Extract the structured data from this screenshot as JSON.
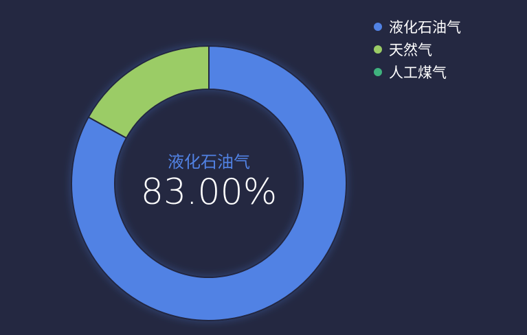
{
  "chart_data": {
    "type": "pie",
    "categories": [
      "液化石油气",
      "天然气",
      "人工煤气"
    ],
    "values": [
      83,
      17,
      0
    ],
    "colors": [
      "#5182e4",
      "#9bcc66",
      "#3fb27e"
    ],
    "legend_position": "top-right",
    "donut": true,
    "center": {
      "name": "液化石油气",
      "value": "83.00%"
    }
  }
}
